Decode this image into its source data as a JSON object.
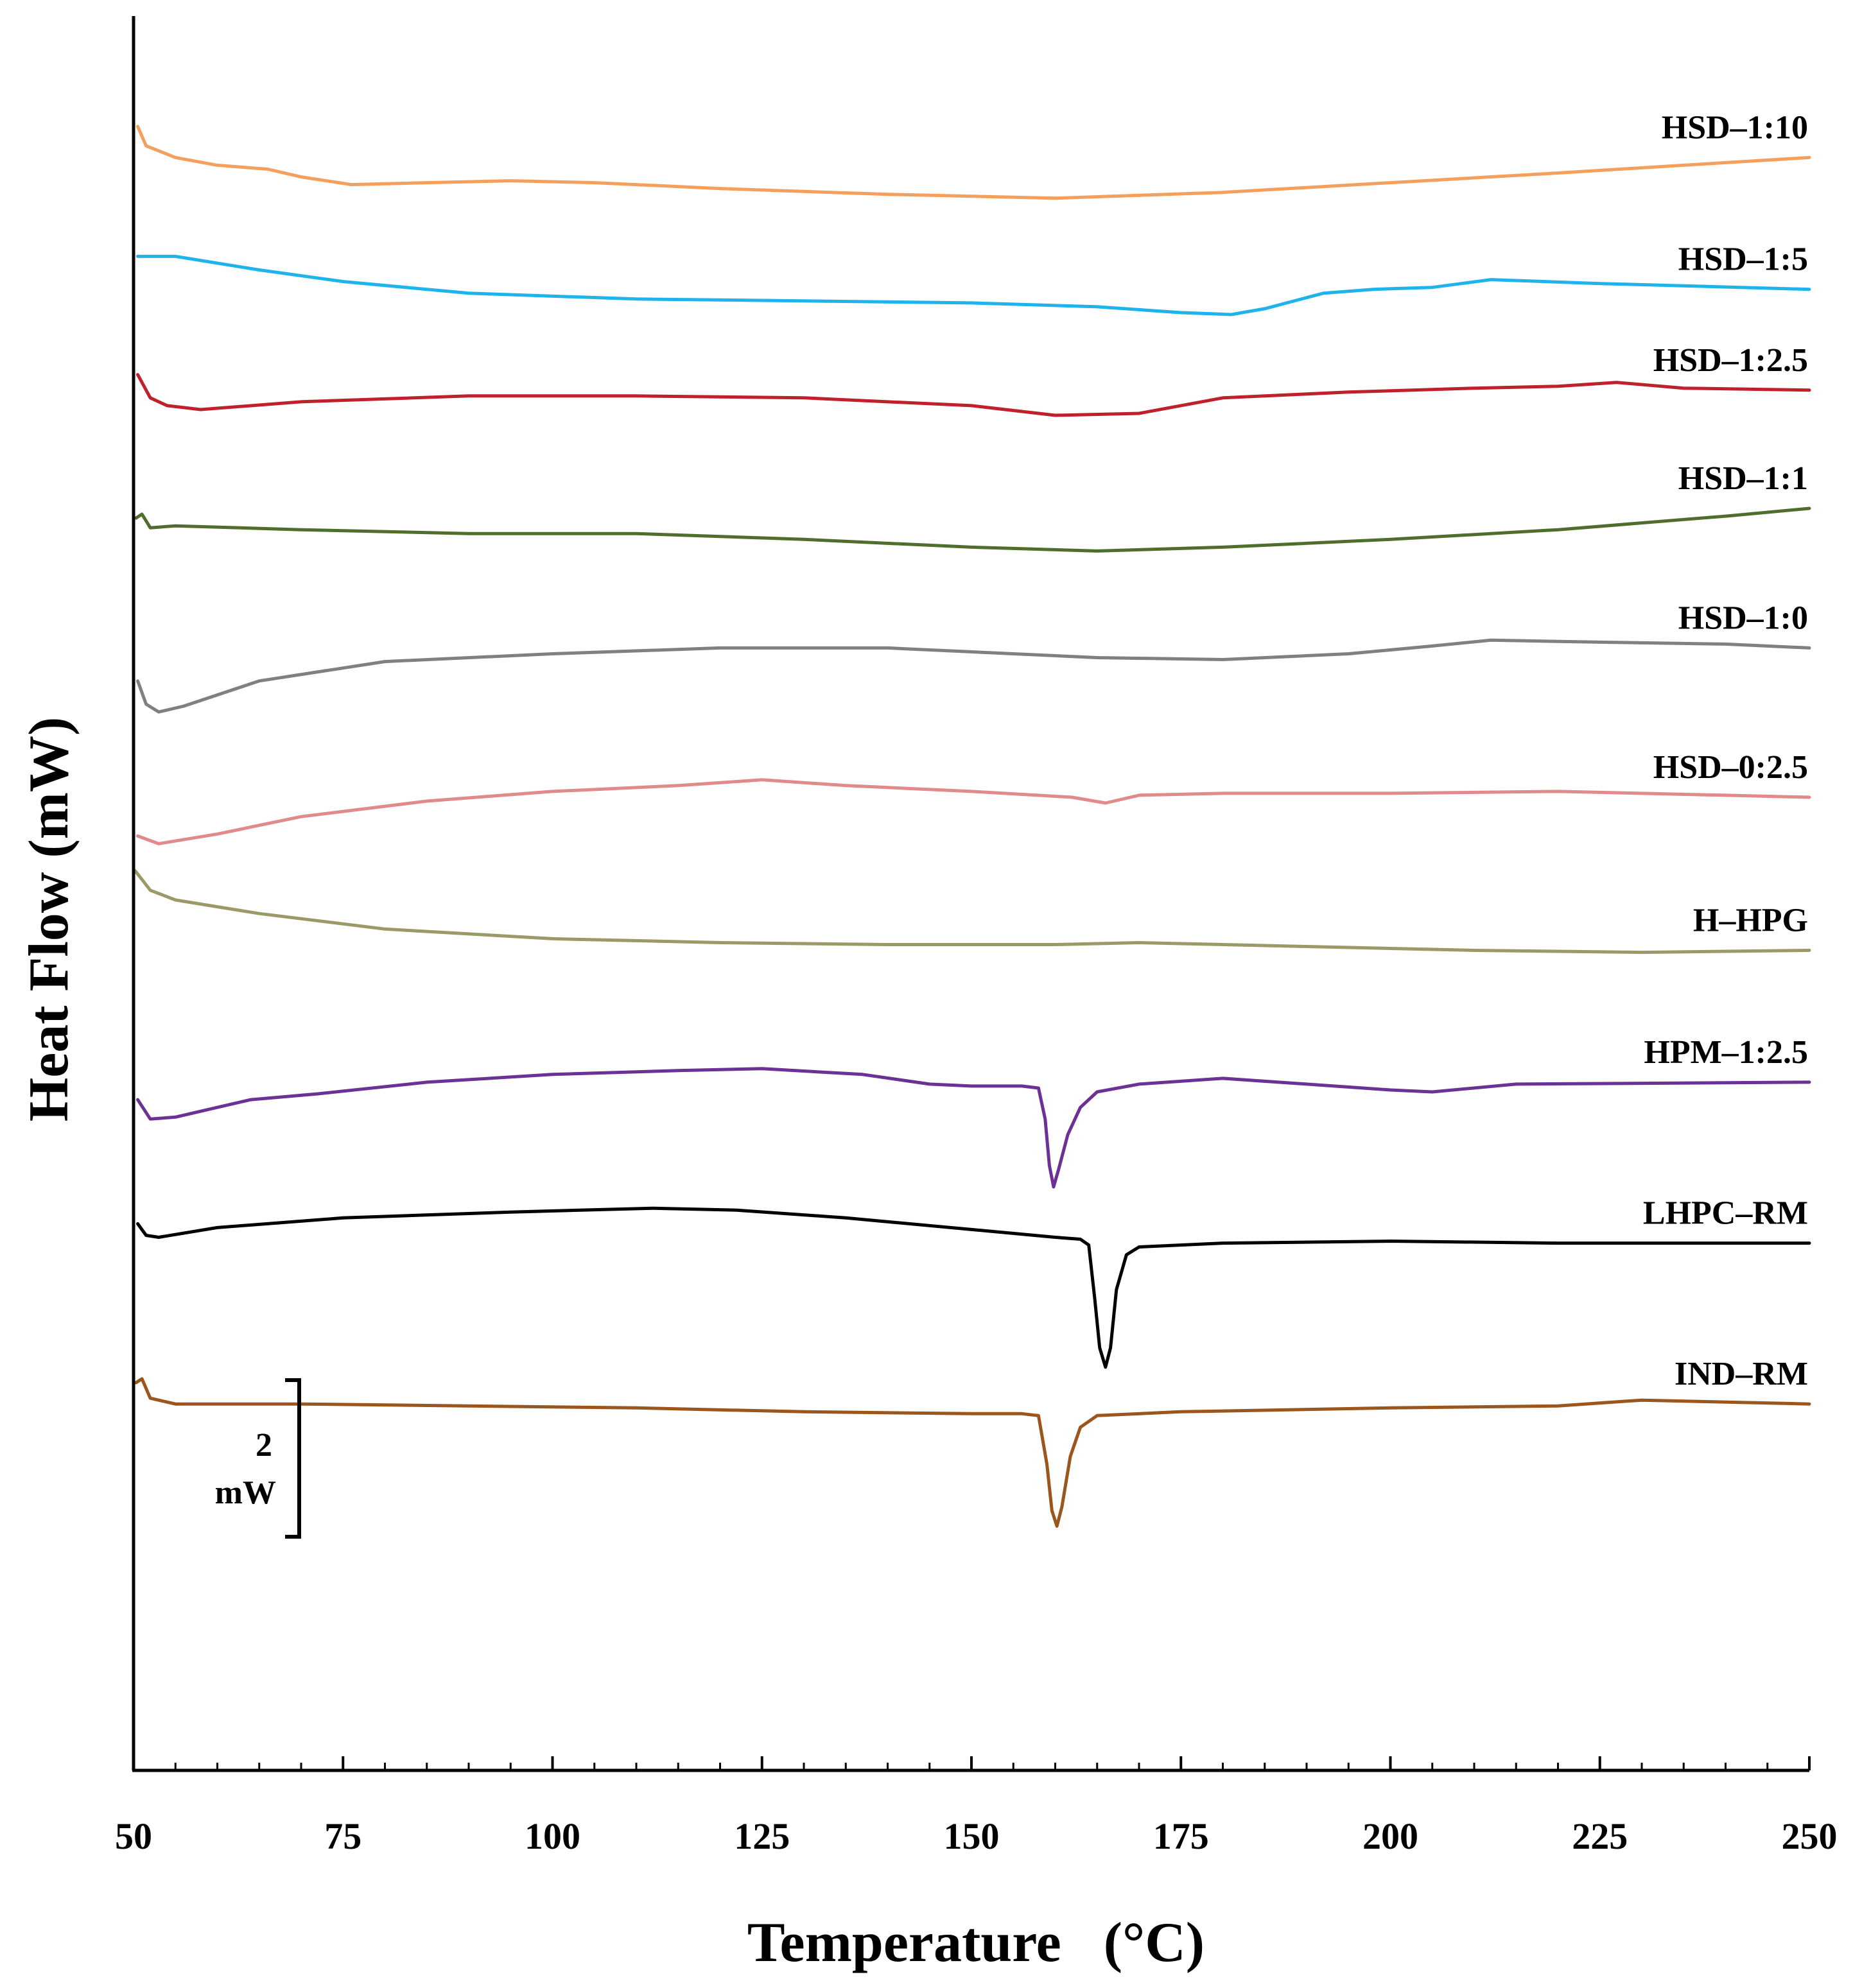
{
  "chart_data": {
    "type": "line",
    "title": "",
    "xlabel": "Temperature   (°C)",
    "ylabel": "Heat Flow (mW)",
    "xlim": [
      50,
      250
    ],
    "ylim": [
      -42.4,
      2.6
    ],
    "x_ticks": [
      "50",
      "75",
      "100",
      "125",
      "150",
      "175",
      "200",
      "225",
      "250"
    ],
    "grid": false,
    "legend": "labels placed at right end of each curve",
    "scale_bar": {
      "value": "2",
      "unit": "mW",
      "value_mw": 2
    },
    "series": [
      {
        "name": "HSD–1:10",
        "color": "#f4a05c",
        "points": [
          [
            50.5,
            0.0
          ],
          [
            51.5,
            -0.5
          ],
          [
            55,
            -0.8
          ],
          [
            60,
            -1.0
          ],
          [
            66,
            -1.1
          ],
          [
            70,
            -1.3
          ],
          [
            76,
            -1.5
          ],
          [
            85,
            -1.45
          ],
          [
            95,
            -1.4
          ],
          [
            105,
            -1.45
          ],
          [
            120,
            -1.6
          ],
          [
            140,
            -1.75
          ],
          [
            160,
            -1.85
          ],
          [
            180,
            -1.7
          ],
          [
            200,
            -1.45
          ],
          [
            220,
            -1.2
          ],
          [
            235,
            -1.0
          ],
          [
            250,
            -0.8
          ]
        ]
      },
      {
        "name": "HSD–1:5",
        "color": "#1fb3ec",
        "points": [
          [
            50.5,
            -3.35
          ],
          [
            55,
            -3.35
          ],
          [
            65,
            -3.7
          ],
          [
            75,
            -4.0
          ],
          [
            90,
            -4.3
          ],
          [
            110,
            -4.45
          ],
          [
            130,
            -4.5
          ],
          [
            150,
            -4.55
          ],
          [
            165,
            -4.65
          ],
          [
            175,
            -4.8
          ],
          [
            181,
            -4.85
          ],
          [
            185,
            -4.7
          ],
          [
            192,
            -4.3
          ],
          [
            198,
            -4.2
          ],
          [
            205,
            -4.15
          ],
          [
            212,
            -3.95
          ],
          [
            225,
            -4.05
          ],
          [
            250,
            -4.2
          ]
        ]
      },
      {
        "name": "HSD–1:2.5",
        "color": "#c0202a",
        "points": [
          [
            50.5,
            -6.4
          ],
          [
            52,
            -7.0
          ],
          [
            54,
            -7.2
          ],
          [
            58,
            -7.3
          ],
          [
            70,
            -7.1
          ],
          [
            90,
            -6.95
          ],
          [
            110,
            -6.95
          ],
          [
            130,
            -7.0
          ],
          [
            150,
            -7.2
          ],
          [
            160,
            -7.45
          ],
          [
            170,
            -7.4
          ],
          [
            180,
            -7.0
          ],
          [
            195,
            -6.85
          ],
          [
            210,
            -6.75
          ],
          [
            220,
            -6.7
          ],
          [
            227,
            -6.6
          ],
          [
            235,
            -6.75
          ],
          [
            250,
            -6.8
          ]
        ]
      },
      {
        "name": "HSD–1:1",
        "color": "#4f6e2b",
        "points": [
          [
            50.3,
            -10.1
          ],
          [
            51,
            -10.0
          ],
          [
            52,
            -10.35
          ],
          [
            55,
            -10.3
          ],
          [
            70,
            -10.4
          ],
          [
            90,
            -10.5
          ],
          [
            110,
            -10.5
          ],
          [
            130,
            -10.65
          ],
          [
            150,
            -10.85
          ],
          [
            165,
            -10.95
          ],
          [
            180,
            -10.85
          ],
          [
            200,
            -10.65
          ],
          [
            220,
            -10.4
          ],
          [
            240,
            -10.05
          ],
          [
            250,
            -9.85
          ]
        ]
      },
      {
        "name": "HSD–1:0",
        "color": "#808080",
        "points": [
          [
            50.5,
            -14.3
          ],
          [
            51.5,
            -14.9
          ],
          [
            53,
            -15.1
          ],
          [
            56,
            -14.95
          ],
          [
            65,
            -14.3
          ],
          [
            80,
            -13.8
          ],
          [
            100,
            -13.6
          ],
          [
            120,
            -13.45
          ],
          [
            140,
            -13.45
          ],
          [
            155,
            -13.6
          ],
          [
            165,
            -13.7
          ],
          [
            180,
            -13.75
          ],
          [
            195,
            -13.6
          ],
          [
            205,
            -13.4
          ],
          [
            212,
            -13.25
          ],
          [
            225,
            -13.3
          ],
          [
            240,
            -13.35
          ],
          [
            250,
            -13.45
          ]
        ]
      },
      {
        "name": "HSD–0:2.5",
        "color": "#e08a8a",
        "points": [
          [
            50.5,
            -18.3
          ],
          [
            53,
            -18.5
          ],
          [
            60,
            -18.25
          ],
          [
            70,
            -17.8
          ],
          [
            85,
            -17.4
          ],
          [
            100,
            -17.15
          ],
          [
            115,
            -17.0
          ],
          [
            125,
            -16.85
          ],
          [
            135,
            -17.0
          ],
          [
            150,
            -17.15
          ],
          [
            162,
            -17.3
          ],
          [
            166,
            -17.45
          ],
          [
            170,
            -17.25
          ],
          [
            180,
            -17.2
          ],
          [
            200,
            -17.2
          ],
          [
            220,
            -17.15
          ],
          [
            240,
            -17.25
          ],
          [
            250,
            -17.3
          ]
        ]
      },
      {
        "name": "H–HPG",
        "color": "#9c9968",
        "points": [
          [
            50.2,
            -19.2
          ],
          [
            52,
            -19.7
          ],
          [
            55,
            -19.95
          ],
          [
            65,
            -20.3
          ],
          [
            80,
            -20.7
          ],
          [
            100,
            -20.95
          ],
          [
            120,
            -21.05
          ],
          [
            140,
            -21.1
          ],
          [
            160,
            -21.1
          ],
          [
            170,
            -21.05
          ],
          [
            190,
            -21.15
          ],
          [
            210,
            -21.25
          ],
          [
            230,
            -21.3
          ],
          [
            250,
            -21.25
          ]
        ]
      },
      {
        "name": "HPM–1:2.5",
        "color": "#6b3194",
        "points": [
          [
            50.5,
            -25.1
          ],
          [
            52,
            -25.6
          ],
          [
            55,
            -25.55
          ],
          [
            58,
            -25.4
          ],
          [
            64,
            -25.1
          ],
          [
            72,
            -24.95
          ],
          [
            85,
            -24.65
          ],
          [
            100,
            -24.45
          ],
          [
            115,
            -24.35
          ],
          [
            125,
            -24.3
          ],
          [
            137,
            -24.45
          ],
          [
            145,
            -24.7
          ],
          [
            150,
            -24.75
          ],
          [
            156,
            -24.75
          ],
          [
            158,
            -24.8
          ],
          [
            158.8,
            -25.6
          ],
          [
            159.3,
            -26.8
          ],
          [
            159.8,
            -27.35
          ],
          [
            160.4,
            -26.9
          ],
          [
            161.5,
            -26.0
          ],
          [
            163,
            -25.3
          ],
          [
            165,
            -24.9
          ],
          [
            170,
            -24.7
          ],
          [
            180,
            -24.55
          ],
          [
            190,
            -24.7
          ],
          [
            200,
            -24.85
          ],
          [
            205,
            -24.9
          ],
          [
            215,
            -24.7
          ],
          [
            250,
            -24.65
          ]
        ]
      },
      {
        "name": "LHPC–RM",
        "color": "#000000",
        "points": [
          [
            50.5,
            -28.3
          ],
          [
            51.5,
            -28.6
          ],
          [
            53,
            -28.65
          ],
          [
            60,
            -28.4
          ],
          [
            75,
            -28.15
          ],
          [
            95,
            -28.0
          ],
          [
            112,
            -27.9
          ],
          [
            122,
            -27.95
          ],
          [
            135,
            -28.15
          ],
          [
            150,
            -28.45
          ],
          [
            160,
            -28.65
          ],
          [
            163,
            -28.7
          ],
          [
            164,
            -28.85
          ],
          [
            164.7,
            -30.2
          ],
          [
            165.3,
            -31.5
          ],
          [
            166,
            -32.0
          ],
          [
            166.6,
            -31.5
          ],
          [
            167.3,
            -30.0
          ],
          [
            168.5,
            -29.1
          ],
          [
            170,
            -28.9
          ],
          [
            180,
            -28.8
          ],
          [
            200,
            -28.75
          ],
          [
            220,
            -28.8
          ],
          [
            250,
            -28.8
          ]
        ]
      },
      {
        "name": "IND–RM",
        "color": "#9a561c",
        "points": [
          [
            50.3,
            -32.4
          ],
          [
            51,
            -32.3
          ],
          [
            52,
            -32.8
          ],
          [
            55,
            -32.95
          ],
          [
            70,
            -32.95
          ],
          [
            90,
            -33.0
          ],
          [
            110,
            -33.05
          ],
          [
            130,
            -33.15
          ],
          [
            150,
            -33.2
          ],
          [
            156,
            -33.2
          ],
          [
            158,
            -33.25
          ],
          [
            159,
            -34.5
          ],
          [
            159.6,
            -35.7
          ],
          [
            160.2,
            -36.1
          ],
          [
            160.8,
            -35.6
          ],
          [
            161.8,
            -34.3
          ],
          [
            163,
            -33.55
          ],
          [
            165,
            -33.25
          ],
          [
            175,
            -33.15
          ],
          [
            200,
            -33.05
          ],
          [
            220,
            -33.0
          ],
          [
            230,
            -32.85
          ],
          [
            250,
            -32.95
          ]
        ]
      }
    ]
  }
}
